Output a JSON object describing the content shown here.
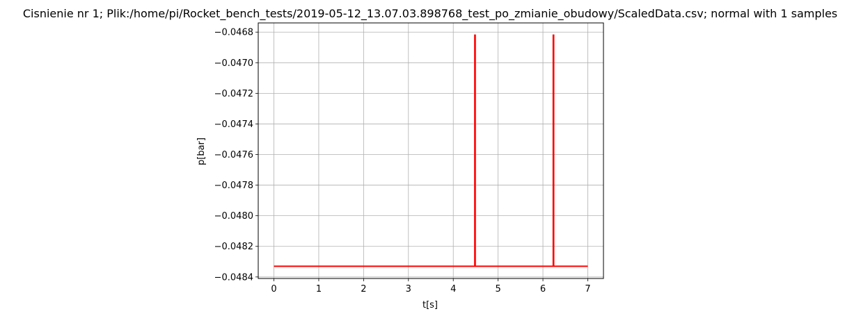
{
  "chart_data": {
    "type": "line",
    "title": "Cisnienie nr 1; Plik:/home/pi/Rocket_bench_tests/2019-05-12_13.07.03.898768_test_po_zmianie_obudowy/ScaledData.csv; normal with 1 samples",
    "xlabel": "t[s]",
    "ylabel": "p[bar]",
    "xlim": [
      -0.35,
      7.35
    ],
    "ylim": [
      -0.04841,
      -0.04674
    ],
    "grid": true,
    "xticks": [
      0,
      1,
      2,
      3,
      4,
      5,
      6,
      7
    ],
    "xtick_labels": [
      "0",
      "1",
      "2",
      "3",
      "4",
      "5",
      "6",
      "7"
    ],
    "yticks": [
      -0.0484,
      -0.0482,
      -0.048,
      -0.0478,
      -0.0476,
      -0.0474,
      -0.0472,
      -0.047,
      -0.0468
    ],
    "ytick_labels": [
      "−0.0484",
      "−0.0482",
      "−0.0480",
      "−0.0478",
      "−0.0476",
      "−0.0474",
      "−0.0472",
      "−0.0470",
      "−0.0468"
    ],
    "series": [
      {
        "color": "#ff0000",
        "x": [
          0,
          4.48,
          4.48,
          4.49,
          4.49,
          6.23,
          6.23,
          6.24,
          6.24,
          7.0
        ],
        "y": [
          -0.04833,
          -0.04833,
          -0.04682,
          -0.04682,
          -0.04833,
          -0.04833,
          -0.04682,
          -0.04682,
          -0.04833,
          -0.04833
        ]
      }
    ]
  }
}
